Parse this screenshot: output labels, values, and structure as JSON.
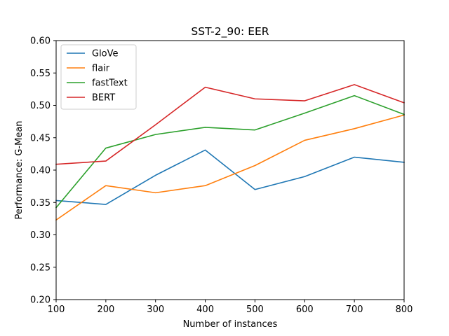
{
  "chart_data": {
    "type": "line",
    "title": "SST-2_90: EER",
    "xlabel": "Number of instances",
    "ylabel": "Performance: G-Mean",
    "x": [
      100,
      200,
      300,
      400,
      500,
      600,
      700,
      800
    ],
    "xlim": [
      100,
      800
    ],
    "ylim": [
      0.2,
      0.6
    ],
    "xticks": [
      "100",
      "200",
      "300",
      "400",
      "500",
      "600",
      "700",
      "800"
    ],
    "yticks": [
      "0.20",
      "0.25",
      "0.30",
      "0.35",
      "0.40",
      "0.45",
      "0.50",
      "0.55",
      "0.60"
    ],
    "legend_position": "top-left",
    "grid": false,
    "series": [
      {
        "name": "GloVe",
        "color": "#1f77b4",
        "values": [
          0.353,
          0.347,
          0.392,
          0.431,
          0.37,
          0.39,
          0.42,
          0.412
        ]
      },
      {
        "name": "flair",
        "color": "#ff7f0e",
        "values": [
          0.323,
          0.376,
          0.365,
          0.376,
          0.407,
          0.446,
          0.464,
          0.485
        ]
      },
      {
        "name": "fastText",
        "color": "#2ca02c",
        "values": [
          0.342,
          0.434,
          0.455,
          0.466,
          0.462,
          0.488,
          0.515,
          0.486
        ]
      },
      {
        "name": "BERT",
        "color": "#d62728",
        "values": [
          0.409,
          0.414,
          0.47,
          0.528,
          0.51,
          0.507,
          0.532,
          0.504
        ]
      }
    ]
  }
}
